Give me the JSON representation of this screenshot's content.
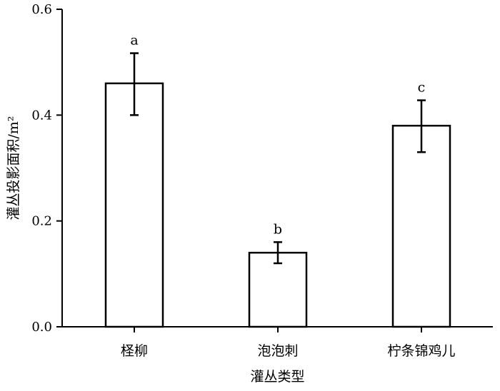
{
  "chart_data": {
    "type": "bar",
    "categories": [
      "柽柳",
      "泡泡刺",
      "柠条锦鸡儿"
    ],
    "values": [
      0.46,
      0.14,
      0.38
    ],
    "error_low": [
      0.4,
      0.12,
      0.33
    ],
    "error_high": [
      0.517,
      0.16,
      0.428
    ],
    "significance_labels": [
      "a",
      "b",
      "c"
    ],
    "xlabel": "灌丛类型",
    "ylabel": "灌丛投影面积/m²",
    "ylim": [
      0,
      0.6
    ],
    "yticks": [
      0.0,
      0.2,
      0.4,
      0.6
    ],
    "ytick_labels": [
      "0.0",
      "0.2",
      "0.4",
      "0.6"
    ],
    "grid": false,
    "bar_fill": "#ffffff",
    "bar_stroke": "#000000"
  }
}
